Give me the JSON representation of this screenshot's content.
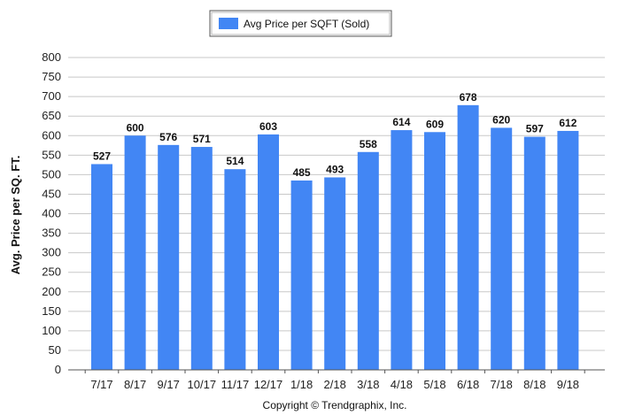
{
  "chart_data": {
    "type": "bar",
    "categories": [
      "7/17",
      "8/17",
      "9/17",
      "10/17",
      "11/17",
      "12/17",
      "1/18",
      "2/18",
      "3/18",
      "4/18",
      "5/18",
      "6/18",
      "7/18",
      "8/18",
      "9/18"
    ],
    "series": [
      {
        "name": "Avg Price per SQFT (Sold)",
        "values": [
          527,
          600,
          576,
          571,
          514,
          603,
          485,
          493,
          558,
          614,
          609,
          678,
          620,
          597,
          612
        ],
        "color": "#4286f4"
      }
    ],
    "title": "",
    "xlabel": "",
    "ylabel": "Avg. Price per SQ. FT.",
    "ylim": [
      0,
      800
    ],
    "yticks": [
      0,
      50,
      100,
      150,
      200,
      250,
      300,
      350,
      400,
      450,
      500,
      550,
      600,
      650,
      700,
      750,
      800
    ],
    "grid": true,
    "legend_position": "top-center",
    "data_labels": true
  },
  "footer": {
    "copyright": "Copyright © Trendgraphix, Inc."
  }
}
